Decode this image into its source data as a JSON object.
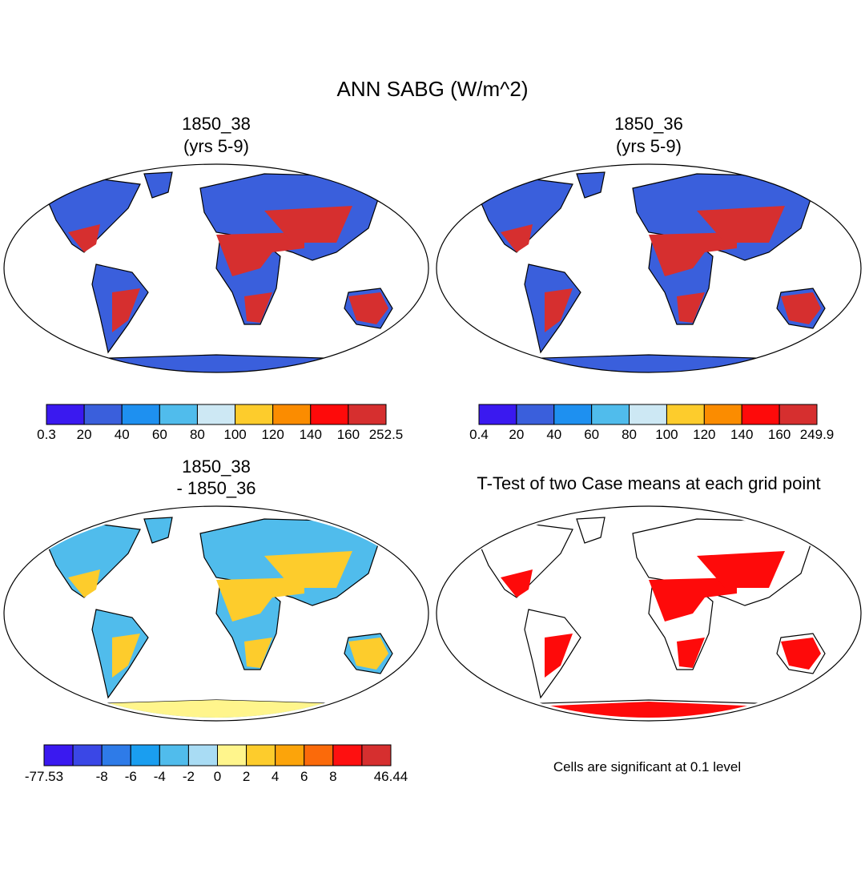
{
  "header": {
    "title": "ANN SABG (W/m^2)"
  },
  "panels": [
    {
      "title": [
        "1850_38",
        "(yrs 5-9)"
      ]
    },
    {
      "title": [
        "1850_36",
        "(yrs 5-9)"
      ]
    },
    {
      "title": [
        "1850_38",
        "- 1850_36"
      ]
    },
    {
      "title": [
        "T-Test of two Case means at each grid point"
      ],
      "note": "Cells are significant at 0.1 level"
    }
  ],
  "colorbars": [
    {
      "colors": [
        "#3a19f0",
        "#3a5fdc",
        "#1e90f0",
        "#50bcec",
        "#cde8f4",
        "#fdcc2c",
        "#fb8c00",
        "#fe0a0a",
        "#d62f2f"
      ],
      "labels": [
        "0.3",
        "20",
        "40",
        "60",
        "80",
        "100",
        "120",
        "140",
        "160",
        "252.5"
      ]
    },
    {
      "colors": [
        "#3a19f0",
        "#3a5fdc",
        "#1e90f0",
        "#50bcec",
        "#cde8f4",
        "#fdcc2c",
        "#fb8c00",
        "#fe0a0a",
        "#d62f2f"
      ],
      "labels": [
        "0.4",
        "20",
        "40",
        "60",
        "80",
        "100",
        "120",
        "140",
        "160",
        "249.9"
      ]
    },
    {
      "colors": [
        "#3a19f0",
        "#3a47e6",
        "#2e7be8",
        "#1a9ef0",
        "#50bcec",
        "#a9dcf4",
        "#fff58c",
        "#fdcc2c",
        "#fca40a",
        "#fb6a0a",
        "#fe1010",
        "#d62f2f"
      ],
      "labels": [
        "-77.53",
        null,
        "-8",
        "-6",
        "-4",
        "-2",
        "0",
        "2",
        "4",
        "6",
        "8",
        null,
        "46.44"
      ]
    }
  ]
}
